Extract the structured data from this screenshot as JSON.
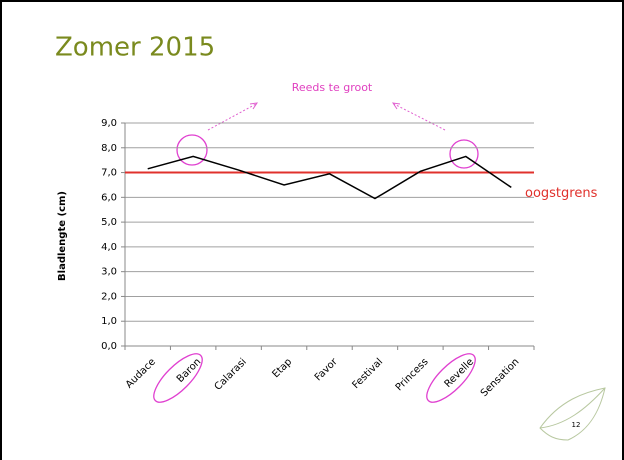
{
  "chart_data": {
    "type": "line",
    "title": "Zomer 2015",
    "y_label": "Bladlengte (cm)",
    "categories": [
      "Audace",
      "Baron",
      "Calarasi",
      "Etap",
      "Favor",
      "Festival",
      "Princess",
      "Revelle",
      "Sensation"
    ],
    "values": [
      7.15,
      7.65,
      7.1,
      6.5,
      6.95,
      5.95,
      7.05,
      7.65,
      6.4
    ],
    "color": "#000000",
    "ylim": [
      0,
      9
    ],
    "yticks": [
      {
        "value": 0,
        "label": "0,0"
      },
      {
        "value": 1,
        "label": "1,0"
      },
      {
        "value": 2,
        "label": "2,0"
      },
      {
        "value": 3,
        "label": "3,0"
      },
      {
        "value": 4,
        "label": "4,0"
      },
      {
        "value": 5,
        "label": "5,0"
      },
      {
        "value": 6,
        "label": "6,0"
      },
      {
        "value": 7,
        "label": "7,0"
      },
      {
        "value": 8,
        "label": "8,0"
      },
      {
        "value": 9,
        "label": "9,0"
      }
    ],
    "grid": true,
    "threshold": {
      "value": 7,
      "label": "oogstgrens",
      "color": "#e0312c"
    },
    "annotation": "Reeds te groot"
  },
  "page_number": "12"
}
